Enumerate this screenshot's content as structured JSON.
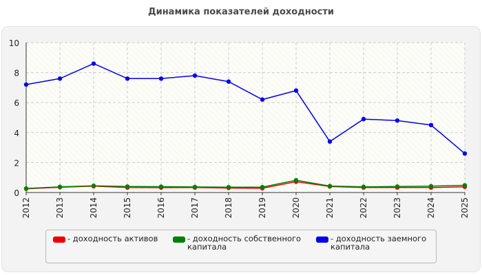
{
  "chart_data": {
    "type": "line",
    "title": "Динамика показателей доходности",
    "xlabel": "",
    "ylabel": "",
    "categories": [
      "2012",
      "2013",
      "2014",
      "2015",
      "2016",
      "2017",
      "2018",
      "2019",
      "2020",
      "2021",
      "2022",
      "2023",
      "2024",
      "2025"
    ],
    "ylim": [
      0,
      10
    ],
    "yticks": [
      "0",
      "2",
      "4",
      "6",
      "8",
      "10"
    ],
    "grid": true,
    "legend_position": "bottom",
    "series": [
      {
        "name": "- доходность активов",
        "color": "#ee0000",
        "values": [
          0.25,
          0.35,
          0.42,
          0.33,
          0.32,
          0.33,
          0.3,
          0.28,
          0.72,
          0.4,
          0.33,
          0.33,
          0.33,
          0.38
        ]
      },
      {
        "name": "- доходность собственного капитала",
        "color": "#008000",
        "values": [
          0.27,
          0.38,
          0.45,
          0.4,
          0.39,
          0.37,
          0.36,
          0.36,
          0.82,
          0.43,
          0.38,
          0.4,
          0.42,
          0.48
        ]
      },
      {
        "name": "- доходность заемного капитала",
        "color": "#0000ee",
        "values": [
          7.2,
          7.6,
          8.6,
          7.6,
          7.6,
          7.8,
          7.4,
          6.2,
          6.8,
          3.4,
          4.9,
          4.8,
          4.5,
          2.6
        ]
      }
    ]
  },
  "legend": {
    "entries": [
      {
        "line1": "- доходность активов",
        "line2": ""
      },
      {
        "line1": "- доходность собственного",
        "line2": "капитала"
      },
      {
        "line1": "- доходность заемного",
        "line2": "капитала"
      }
    ]
  }
}
